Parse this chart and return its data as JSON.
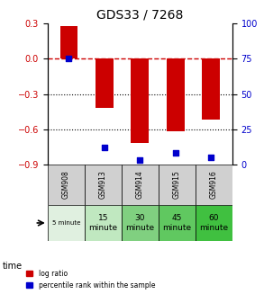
{
  "title": "GDS33 / 7268",
  "samples": [
    "GSM908",
    "GSM913",
    "GSM914",
    "GSM915",
    "GSM916"
  ],
  "time_labels": [
    "5 minute",
    "15\nminute",
    "30\nminute",
    "45\nminute",
    "60\nminute"
  ],
  "log_ratios": [
    0.28,
    -0.42,
    -0.72,
    -0.62,
    -0.52
  ],
  "percentile_ranks": [
    75,
    12,
    3,
    8,
    5
  ],
  "left_ylim": [
    -0.9,
    0.3
  ],
  "right_ylim": [
    0,
    100
  ],
  "left_yticks": [
    0.3,
    0.0,
    -0.3,
    -0.6,
    -0.9
  ],
  "right_yticks": [
    100,
    75,
    50,
    25,
    0
  ],
  "bar_color": "#cc0000",
  "scatter_color": "#0000cc",
  "dashed_line_color": "#cc0000",
  "dotted_line_color": "#000000",
  "background_color": "#ffffff",
  "table_header_color": "#d0d0d0",
  "time_colors": [
    "#e0f0e0",
    "#c0e8c0",
    "#80d080",
    "#60c860",
    "#40c040"
  ],
  "legend_log_ratio": "log ratio",
  "legend_percentile": "percentile rank within the sample",
  "xlabel": "time",
  "bar_width": 0.5
}
